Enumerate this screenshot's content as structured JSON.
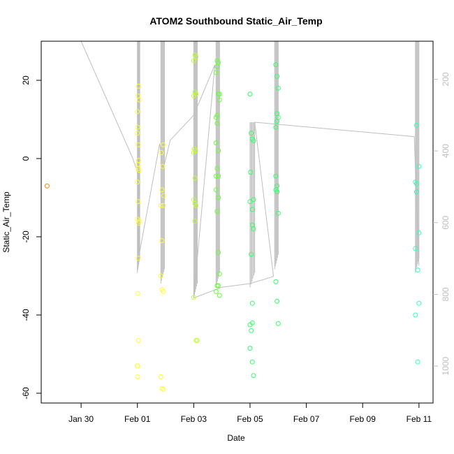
{
  "chart_data": {
    "type": "scatter",
    "title": "ATOM2 Southbound Static_Air_Temp",
    "xlabel": "Date",
    "ylabel": "Static_Air_Temp",
    "xlim": [
      "2020-01-28T14:00",
      "2020-02-11T12:00"
    ],
    "ylim": [
      -62.5,
      30
    ],
    "y_ticks": [
      -60,
      -40,
      -20,
      0,
      20
    ],
    "y_tick_labels": [
      "-60",
      "-40",
      "-20",
      "0",
      "20"
    ],
    "x_ticks": [
      "2020-01-30",
      "2020-02-01",
      "2020-02-03",
      "2020-02-05",
      "2020-02-07",
      "2020-02-09",
      "2020-02-11"
    ],
    "x_tick_labels": [
      "Jan 30",
      "Feb 01",
      "Feb 03",
      "Feb 05",
      "Feb 07",
      "Feb 09",
      "Feb 11"
    ],
    "secondary_axis": {
      "position": "right",
      "label": "",
      "ticks": [
        200,
        400,
        600,
        800,
        1000
      ],
      "tick_labels": [
        "200",
        "400",
        "600",
        "800",
        "1000"
      ],
      "range": [
        94,
        1103
      ],
      "reversed": true,
      "color": "#bebebe"
    },
    "grid": false,
    "legend": "none",
    "point_style": "open circles",
    "point_colors_by_time": [
      "#ff7f00",
      "#ffff33",
      "#bfff33",
      "#66ff33",
      "#33ff66",
      "#33ffbf"
    ],
    "series": [
      {
        "color": "#ff7f00",
        "points": [
          [
            "2020-01-28T19:00",
            -7
          ]
        ]
      },
      {
        "color": "#ffff33",
        "points": [
          [
            "2020-02-01T00:00",
            12
          ],
          [
            "2020-02-01T00:30",
            16
          ],
          [
            "2020-02-01T01:00",
            18.5
          ],
          [
            "2020-02-01T01:30",
            15
          ],
          [
            "2020-02-01T00:15",
            8
          ],
          [
            "2020-02-01T00:00",
            6.5
          ],
          [
            "2020-02-01T00:45",
            3.5
          ],
          [
            "2020-02-01T01:00",
            -0.5
          ],
          [
            "2020-02-01T00:20",
            -1.5
          ],
          [
            "2020-02-01T00:40",
            -2.5
          ],
          [
            "2020-02-01T01:20",
            -3
          ],
          [
            "2020-02-01T00:00",
            -6
          ],
          [
            "2020-02-01T00:30",
            -11
          ],
          [
            "2020-02-01T00:00",
            -15.5
          ],
          [
            "2020-02-01T01:00",
            -16.5
          ],
          [
            "2020-02-01T01:40",
            -16
          ],
          [
            "2020-02-01T00:50",
            -25.5
          ],
          [
            "2020-02-01T00:20",
            -34.5
          ],
          [
            "2020-02-01T01:00",
            -46.5
          ],
          [
            "2020-02-01T00:00",
            -53
          ],
          [
            "2020-02-01T00:20",
            -53
          ],
          [
            "2020-02-01T00:10",
            -55.8
          ],
          [
            "2020-02-01T20:00",
            -55.8
          ],
          [
            "2020-02-01T21:00",
            -58.8
          ],
          [
            "2020-02-01T22:00",
            -59
          ],
          [
            "2020-02-01T20:00",
            -30
          ],
          [
            "2020-02-01T21:00",
            -33.5
          ],
          [
            "2020-02-01T22:00",
            -34
          ],
          [
            "2020-02-01T21:00",
            -21
          ],
          [
            "2020-02-01T20:00",
            -12
          ],
          [
            "2020-02-01T22:00",
            -12
          ],
          [
            "2020-02-01T21:00",
            -8
          ],
          [
            "2020-02-01T22:30",
            -9.5
          ],
          [
            "2020-02-01T21:30",
            -2
          ],
          [
            "2020-02-01T22:00",
            3.5
          ],
          [
            "2020-02-01T20:30",
            1.5
          ]
        ]
      },
      {
        "color": "#bfff33",
        "points": [
          [
            "2020-02-03T00:00",
            25
          ],
          [
            "2020-02-03T01:00",
            26.5
          ],
          [
            "2020-02-03T02:00",
            26
          ],
          [
            "2020-02-03T00:00",
            16
          ],
          [
            "2020-02-03T01:00",
            17
          ],
          [
            "2020-02-03T02:00",
            16.5
          ],
          [
            "2020-02-03T00:30",
            2.5
          ],
          [
            "2020-02-03T01:30",
            2
          ],
          [
            "2020-02-03T00:00",
            1.5
          ],
          [
            "2020-02-03T01:00",
            -5
          ],
          [
            "2020-02-03T00:00",
            -10.5
          ],
          [
            "2020-02-03T01:00",
            -11.5
          ],
          [
            "2020-02-03T02:00",
            -12
          ],
          [
            "2020-02-03T01:00",
            -16
          ],
          [
            "2020-02-03T00:00",
            -35.5
          ],
          [
            "2020-02-03T02:00",
            -46.5
          ],
          [
            "2020-02-03T03:00",
            -46.5
          ]
        ]
      },
      {
        "color": "#66ff33",
        "points": [
          [
            "2020-02-03T20:00",
            25
          ],
          [
            "2020-02-03T21:00",
            24.5
          ],
          [
            "2020-02-03T20:00",
            23.5
          ],
          [
            "2020-02-03T19:00",
            22
          ],
          [
            "2020-02-03T21:00",
            16.5
          ],
          [
            "2020-02-03T22:00",
            16.5
          ],
          [
            "2020-02-03T22:00",
            15
          ],
          [
            "2020-02-03T20:00",
            11
          ],
          [
            "2020-02-03T19:00",
            10.5
          ],
          [
            "2020-02-03T20:00",
            9
          ],
          [
            "2020-02-03T19:00",
            4
          ],
          [
            "2020-02-03T21:00",
            2
          ],
          [
            "2020-02-03T20:00",
            -2.5
          ],
          [
            "2020-02-03T19:00",
            -4.5
          ],
          [
            "2020-02-03T21:00",
            -4.5
          ],
          [
            "2020-02-03T19:00",
            -8
          ],
          [
            "2020-02-03T21:00",
            -10
          ],
          [
            "2020-02-03T20:00",
            -13.5
          ],
          [
            "2020-02-03T21:00",
            -24
          ],
          [
            "2020-02-03T22:00",
            -29.5
          ],
          [
            "2020-02-03T21:00",
            -32.5
          ],
          [
            "2020-02-03T20:00",
            -32.5
          ],
          [
            "2020-02-03T19:00",
            -34
          ],
          [
            "2020-02-03T22:00",
            -35
          ]
        ]
      },
      {
        "color": "#33ff66",
        "points": [
          [
            "2020-02-05T00:00",
            16.5
          ],
          [
            "2020-02-05T01:00",
            6.5
          ],
          [
            "2020-02-05T02:00",
            5
          ],
          [
            "2020-02-05T03:00",
            4.5
          ],
          [
            "2020-02-05T00:30",
            -3.5
          ],
          [
            "2020-02-05T03:00",
            -10.5
          ],
          [
            "2020-02-05T00:00",
            -11
          ],
          [
            "2020-02-05T02:00",
            -13
          ],
          [
            "2020-02-05T02:00",
            -17
          ],
          [
            "2020-02-05T03:00",
            -18
          ],
          [
            "2020-02-05T01:00",
            -24.5
          ],
          [
            "2020-02-05T02:00",
            -37
          ],
          [
            "2020-02-05T00:00",
            -42.5
          ],
          [
            "2020-02-05T02:00",
            -42
          ],
          [
            "2020-02-05T01:00",
            -44
          ],
          [
            "2020-02-05T00:00",
            -48.5
          ],
          [
            "2020-02-05T02:00",
            -52
          ],
          [
            "2020-02-05T03:00",
            -55.5
          ],
          [
            "2020-02-05T22:00",
            24
          ],
          [
            "2020-02-05T23:00",
            21
          ],
          [
            "2020-02-06T00:00",
            18
          ],
          [
            "2020-02-05T23:00",
            11.5
          ],
          [
            "2020-02-06T00:00",
            10.5
          ],
          [
            "2020-02-05T23:00",
            9.5
          ],
          [
            "2020-02-05T22:00",
            8
          ],
          [
            "2020-02-05T22:00",
            -4.5
          ],
          [
            "2020-02-05T23:00",
            -7
          ],
          [
            "2020-02-05T22:00",
            -8
          ],
          [
            "2020-02-05T23:00",
            -8.5
          ],
          [
            "2020-02-06T00:00",
            -14
          ],
          [
            "2020-02-05T22:00",
            -31.5
          ],
          [
            "2020-02-05T23:00",
            -36.5
          ],
          [
            "2020-02-06T00:00",
            -42.2
          ]
        ]
      },
      {
        "color": "#33ffbf",
        "points": [
          [
            "2020-02-10T22:00",
            8.5
          ],
          [
            "2020-02-11T00:00",
            -2
          ],
          [
            "2020-02-10T21:00",
            -6
          ],
          [
            "2020-02-10T22:00",
            -6.5
          ],
          [
            "2020-02-10T22:00",
            -8.5
          ],
          [
            "2020-02-11T00:00",
            -19
          ],
          [
            "2020-02-10T21:00",
            -23
          ],
          [
            "2020-02-10T23:00",
            -28.5
          ],
          [
            "2020-02-11T00:00",
            -37
          ],
          [
            "2020-02-10T21:00",
            -40
          ],
          [
            "2020-02-10T23:00",
            -52
          ]
        ]
      }
    ],
    "reference_line": {
      "axis": "secondary",
      "color": "#bebebe",
      "points": [
        [
          "2020-01-28T14:00",
          94
        ],
        [
          "2020-01-30T00:00",
          94
        ],
        [
          "2020-01-31T20:00",
          420
        ],
        [
          "2020-02-01T00:00",
          460
        ],
        [
          "2020-02-01T02:00",
          680
        ],
        [
          "2020-02-01T19:00",
          380
        ],
        [
          "2020-02-01T22:00",
          450
        ],
        [
          "2020-02-02T04:00",
          370
        ],
        [
          "2020-02-03T00:00",
          300
        ],
        [
          "2020-02-03T18:00",
          160
        ],
        [
          "2020-02-03T00:00",
          810
        ],
        [
          "2020-02-04T00:00",
          780
        ],
        [
          "2020-02-05T00:00",
          770
        ],
        [
          "2020-02-05T20:00",
          750
        ],
        [
          "2020-02-05T04:00",
          320
        ],
        [
          "2020-02-10T20:00",
          360
        ],
        [
          "2020-02-11T00:00",
          720
        ]
      ],
      "spikes": [
        {
          "x": [
            "2020-02-01T00:00",
            "2020-02-01T02:00"
          ],
          "y_range": [
            94,
            740
          ]
        },
        {
          "x": [
            "2020-02-01T20:00",
            "2020-02-01T23:00"
          ],
          "y_range": [
            94,
            770
          ]
        },
        {
          "x": [
            "2020-02-03T00:00",
            "2020-02-03T03:00"
          ],
          "y_range": [
            94,
            810
          ]
        },
        {
          "x": [
            "2020-02-03T19:00",
            "2020-02-03T22:00"
          ],
          "y_range": [
            94,
            780
          ]
        },
        {
          "x": [
            "2020-02-05T00:00",
            "2020-02-05T04:00"
          ],
          "y_range": [
            320,
            780
          ]
        },
        {
          "x": [
            "2020-02-05T21:00",
            "2020-02-06T00:00"
          ],
          "y_range": [
            94,
            730
          ]
        },
        {
          "x": [
            "2020-02-10T21:00",
            "2020-02-11T00:00"
          ],
          "y_range": [
            94,
            740
          ]
        }
      ]
    }
  }
}
